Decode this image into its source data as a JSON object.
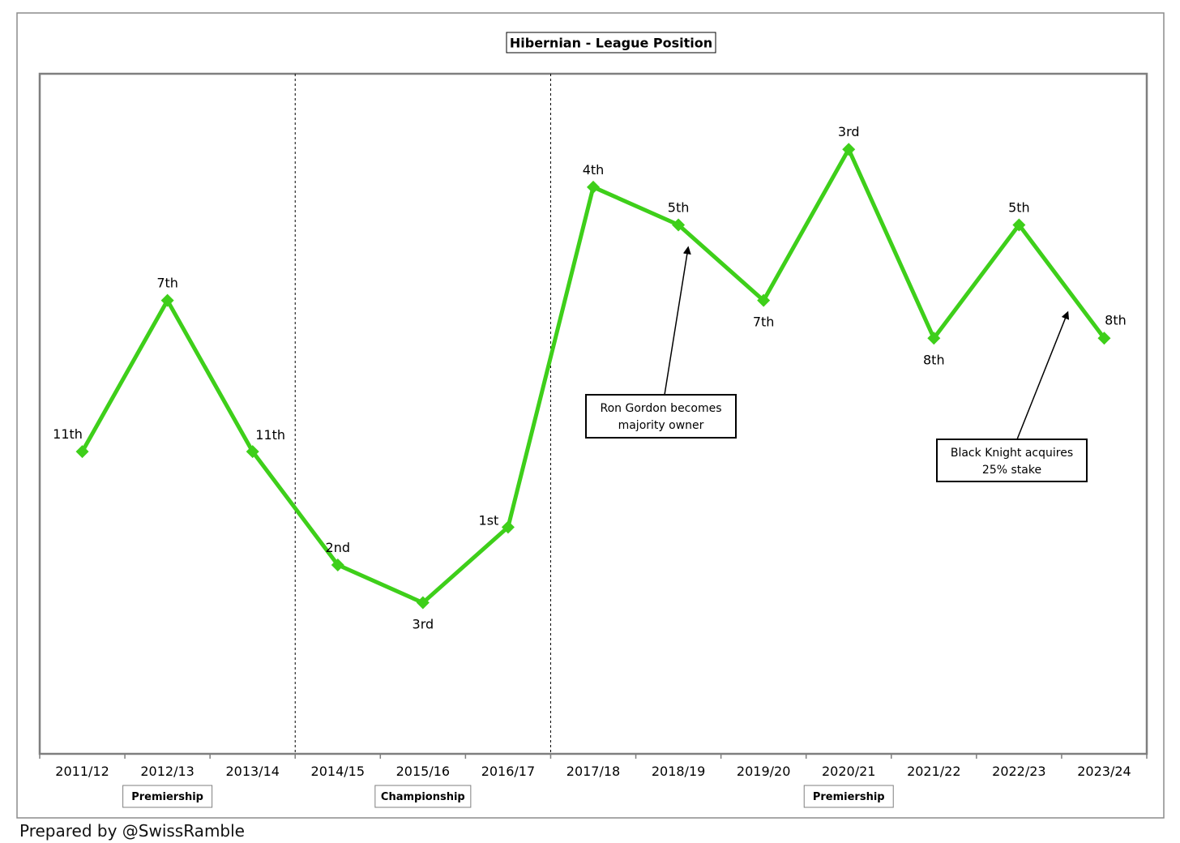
{
  "chart_data": {
    "type": "line",
    "title": "Hibernian - League Position",
    "xlabel": "",
    "ylabel": "",
    "categories": [
      "2011/12",
      "2012/13",
      "2013/14",
      "2014/15",
      "2015/16",
      "2016/17",
      "2017/18",
      "2018/19",
      "2019/20",
      "2020/21",
      "2021/22",
      "2022/23",
      "2023/24"
    ],
    "series": [
      {
        "color": "#3ecf1a",
        "values": [
          11,
          7,
          11,
          2,
          3,
          1,
          4,
          5,
          7,
          3,
          8,
          5,
          8
        ],
        "level": [
          11,
          7,
          11,
          14,
          15,
          13,
          4,
          5,
          7,
          3,
          8,
          5,
          8
        ],
        "labels": [
          "11th",
          "7th",
          "11th",
          "2nd",
          "3rd",
          "1st",
          "4th",
          "5th",
          "7th",
          "3rd",
          "8th",
          "5th",
          "8th"
        ]
      }
    ],
    "ylim": [
      1,
      19
    ],
    "y_inverted": true,
    "grid": false,
    "divisions": [
      {
        "label": "Premiership",
        "from": 0,
        "to": 2
      },
      {
        "label": "Championship",
        "from": 3,
        "to": 5
      },
      {
        "label": "Premiership",
        "from": 6,
        "to": 12
      }
    ],
    "annotations": [
      {
        "text_lines": [
          "Ron Gordon becomes",
          "majority owner"
        ],
        "points_to": "2018/19"
      },
      {
        "text_lines": [
          "Black Knight acquires",
          "25% stake"
        ],
        "points_to": "2022/23"
      }
    ]
  },
  "credit": "Prepared by @SwissRamble"
}
